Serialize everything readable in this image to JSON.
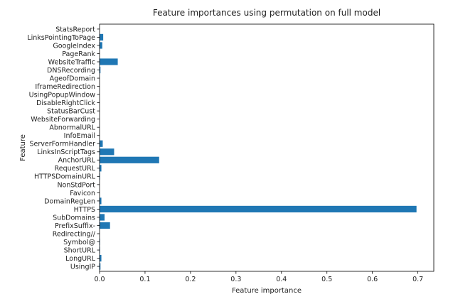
{
  "chart_data": {
    "type": "bar",
    "orientation": "horizontal",
    "title": "Feature importances using permutation on full model",
    "xlabel": "Feature importance",
    "ylabel": "Feature",
    "xlim": [
      0,
      0.735
    ],
    "xticks": [
      0.0,
      0.1,
      0.2,
      0.3,
      0.4,
      0.5,
      0.6,
      0.7
    ],
    "xtick_labels": [
      "0.0",
      "0.1",
      "0.2",
      "0.3",
      "0.4",
      "0.5",
      "0.6",
      "0.7"
    ],
    "grid": false,
    "legend": "none",
    "bar_color": "#1f77b4",
    "categories": [
      "UsingIP",
      "LongURL",
      "ShortURL",
      "Symbol@",
      "Redirecting//",
      "PrefixSuffix-",
      "SubDomains",
      "HTTPS",
      "DomainRegLen",
      "Favicon",
      "NonStdPort",
      "HTTPSDomainURL",
      "RequestURL",
      "AnchorURL",
      "LinksInScriptTags",
      "ServerFormHandler",
      "InfoEmail",
      "AbnormalURL",
      "WebsiteForwarding",
      "StatusBarCust",
      "DisableRightClick",
      "UsingPopupWindow",
      "IframeRedirection",
      "AgeofDomain",
      "DNSRecording",
      "WebsiteTraffic",
      "PageRank",
      "GoogleIndex",
      "LinksPointingToPage",
      "StatsReport"
    ],
    "values": [
      0.002,
      0.004,
      0.001,
      0.001,
      0.0,
      0.023,
      0.011,
      0.697,
      0.004,
      0.0,
      0.0,
      0.001,
      0.004,
      0.131,
      0.032,
      0.007,
      0.0,
      0.0,
      0.0,
      0.0,
      0.0,
      0.0,
      0.0,
      0.0,
      0.002,
      0.04,
      0.0,
      0.006,
      0.008,
      0.0
    ]
  }
}
